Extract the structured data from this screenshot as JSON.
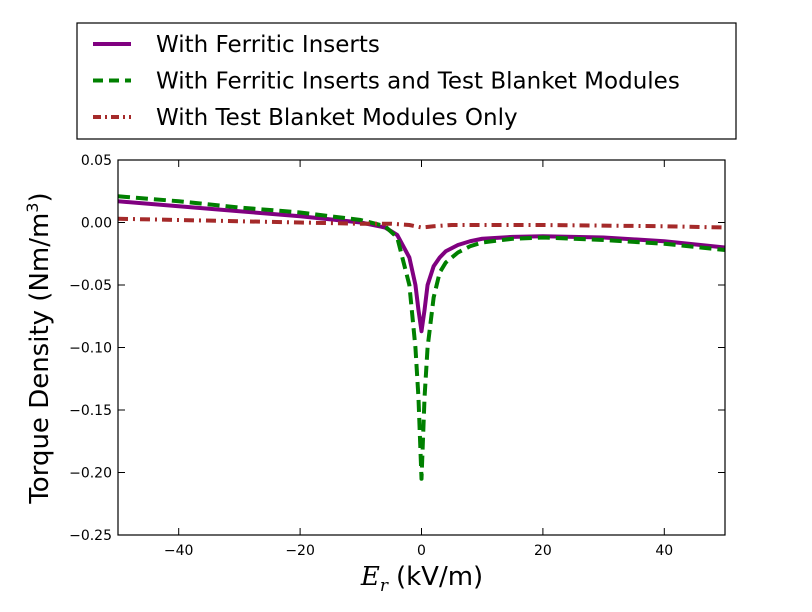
{
  "chart_data": {
    "type": "line",
    "xlabel_var": "E",
    "xlabel_sub": "r",
    "xlabel_unit": "(kV/m)",
    "ylabel_text": "Torque Density (Nm/m",
    "ylabel_sup": "3",
    "ylabel_close": ")",
    "xlim": [
      -50,
      50
    ],
    "ylim": [
      -0.25,
      0.05
    ],
    "xticks": [
      -40,
      -20,
      0,
      20,
      40
    ],
    "xtick_labels": [
      "−40",
      "−20",
      "0",
      "20",
      "40"
    ],
    "yticks": [
      0.05,
      0.0,
      -0.05,
      -0.1,
      -0.15,
      -0.2,
      -0.25
    ],
    "ytick_labels": [
      "0.05",
      "0.00",
      "−0.05",
      "−0.10",
      "−0.15",
      "−0.20",
      "−0.25"
    ],
    "legend_position": "above-plot",
    "grid": false,
    "series": [
      {
        "name": "With Ferritic Inserts",
        "color": "#800080",
        "style": "solid",
        "x": [
          -50,
          -40,
          -30,
          -20,
          -10,
          -6,
          -4,
          -2,
          -1,
          -0.5,
          0,
          0.5,
          1,
          2,
          3,
          4,
          6,
          8,
          10,
          15,
          20,
          30,
          40,
          50
        ],
        "y": [
          0.017,
          0.013,
          0.009,
          0.005,
          0.0,
          -0.004,
          -0.01,
          -0.028,
          -0.05,
          -0.07,
          -0.087,
          -0.07,
          -0.05,
          -0.035,
          -0.028,
          -0.023,
          -0.018,
          -0.015,
          -0.013,
          -0.0115,
          -0.011,
          -0.012,
          -0.015,
          -0.02
        ]
      },
      {
        "name": "With Ferritic Inserts and Test Blanket Modules",
        "color": "#008000",
        "style": "dashed",
        "x": [
          -50,
          -40,
          -30,
          -20,
          -10,
          -6,
          -4,
          -2,
          -1,
          -0.5,
          0,
          0.5,
          1,
          2,
          3,
          4,
          6,
          8,
          10,
          15,
          20,
          30,
          40,
          50
        ],
        "y": [
          0.021,
          0.017,
          0.012,
          0.008,
          0.002,
          -0.003,
          -0.012,
          -0.05,
          -0.1,
          -0.14,
          -0.205,
          -0.14,
          -0.1,
          -0.06,
          -0.04,
          -0.032,
          -0.024,
          -0.019,
          -0.016,
          -0.013,
          -0.012,
          -0.014,
          -0.017,
          -0.022
        ]
      },
      {
        "name": "With Test Blanket Modules Only",
        "color": "#A52A2A",
        "style": "dashdot",
        "x": [
          -50,
          -40,
          -30,
          -20,
          -10,
          -5,
          -2,
          0,
          2,
          5,
          10,
          20,
          30,
          40,
          50
        ],
        "y": [
          0.003,
          0.002,
          0.001,
          0.0,
          -0.001,
          -0.001,
          -0.002,
          -0.004,
          -0.003,
          -0.002,
          -0.002,
          -0.002,
          -0.0025,
          -0.003,
          -0.004
        ]
      }
    ]
  }
}
